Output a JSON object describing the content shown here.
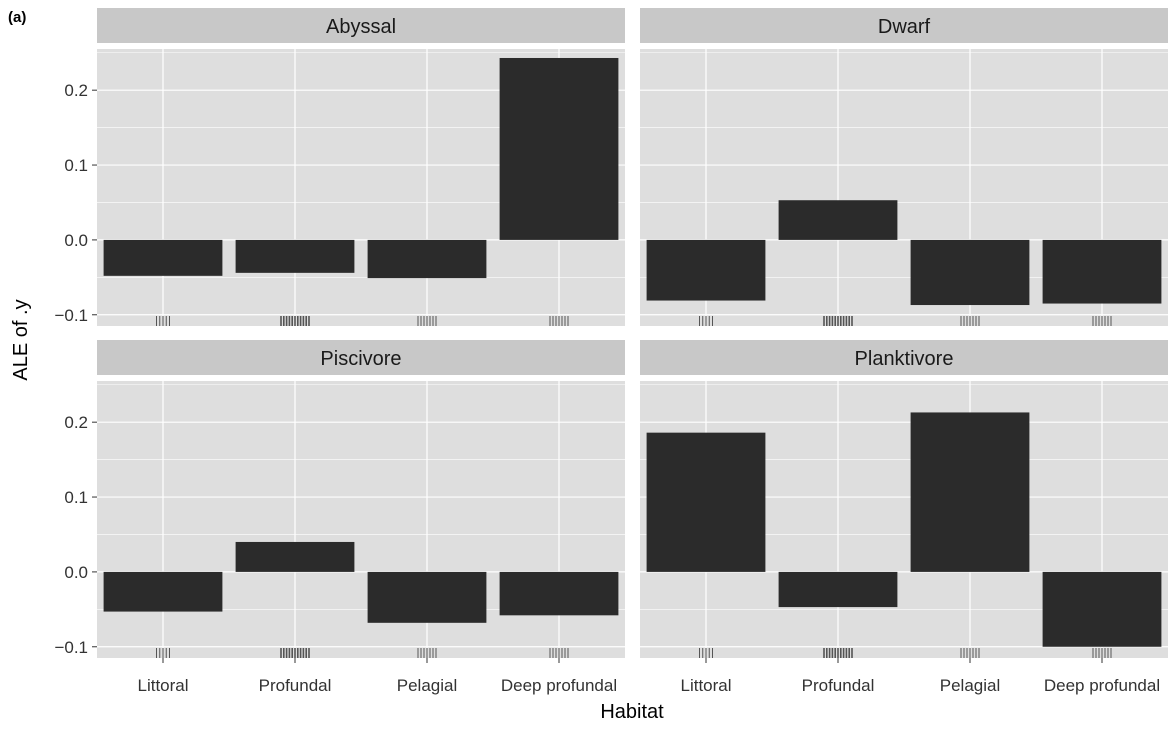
{
  "figure": {
    "panel_label": "(a)",
    "xlabel": "Habitat",
    "ylabel": "ALE of .y"
  },
  "colors": {
    "panel_background": "#dedede",
    "strip_background": "#c8c8c8",
    "grid_line": "#ffffff",
    "bar_fill": "#2b2b2b",
    "rug": "#555555",
    "text": "#1a1a1a"
  },
  "chart_data": {
    "type": "bar",
    "layout": "facet-grid-2x2",
    "categories": [
      "Littoral",
      "Profundal",
      "Pelagial",
      "Deep profundal"
    ],
    "ylim": [
      -0.115,
      0.255
    ],
    "yticks": [
      -0.1,
      0.0,
      0.1,
      0.2
    ],
    "ytick_labels": [
      "−0.1",
      "0.0",
      "0.1",
      "0.2"
    ],
    "grid": true,
    "legend": "none",
    "rug_density": [
      1,
      4,
      2,
      2
    ],
    "facets": [
      {
        "name": "Abyssal",
        "values": [
          -0.048,
          -0.044,
          -0.051,
          0.243
        ]
      },
      {
        "name": "Dwarf",
        "values": [
          -0.081,
          0.053,
          -0.087,
          -0.085
        ]
      },
      {
        "name": "Piscivore",
        "values": [
          -0.053,
          0.04,
          -0.068,
          -0.058
        ]
      },
      {
        "name": "Planktivore",
        "values": [
          0.186,
          -0.047,
          0.213,
          -0.1
        ]
      }
    ]
  }
}
